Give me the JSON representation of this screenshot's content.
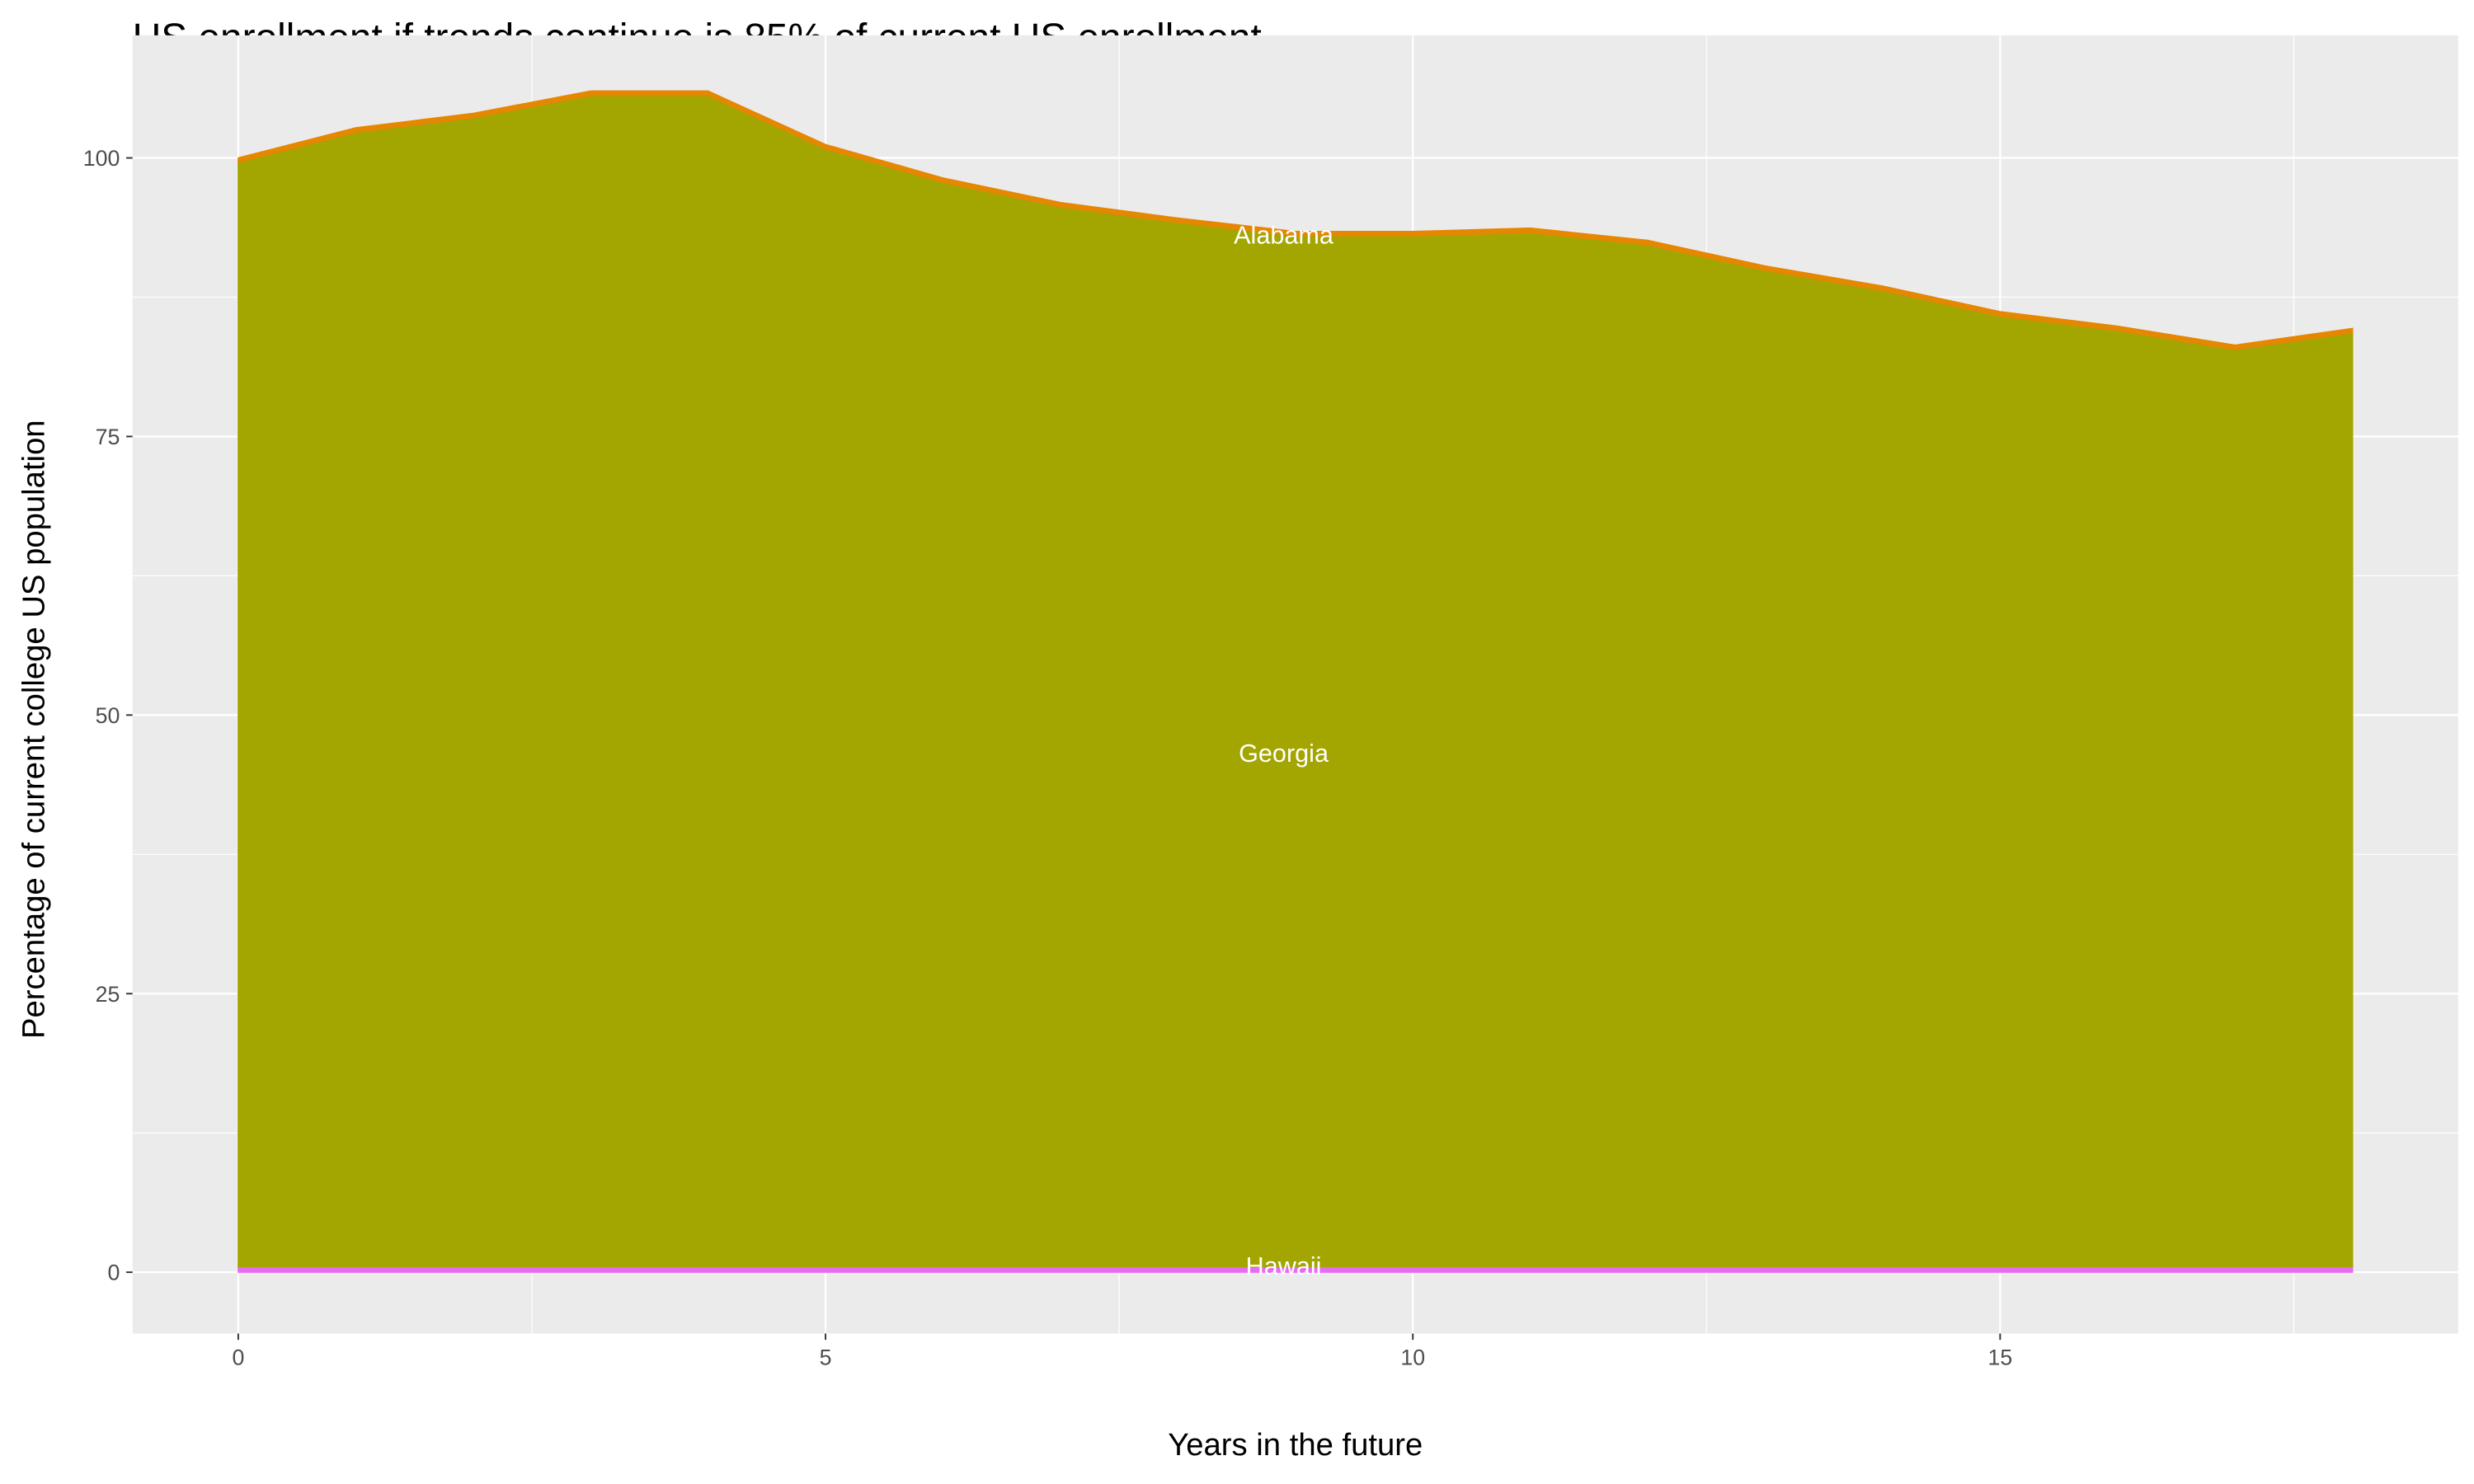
{
  "chart_data": {
    "type": "area",
    "stacked": true,
    "title": "US enrollment if trends continue is 85% of current US enrollment",
    "xlabel": "Years in the future",
    "ylabel": "Percentage of current college US population",
    "xlim": [
      -0.9,
      18.9
    ],
    "ylim": [
      -5.5,
      111
    ],
    "x_ticks": [
      0,
      5,
      10,
      15
    ],
    "y_ticks": [
      0,
      25,
      50,
      75,
      100
    ],
    "x_tick_labels": [
      "0",
      "5",
      "10",
      "15"
    ],
    "y_tick_labels": [
      "0",
      "25",
      "50",
      "75",
      "100"
    ],
    "grid": true,
    "legend": "none",
    "x": [
      0,
      1,
      2,
      3,
      4,
      5,
      6,
      7,
      8,
      9,
      10,
      11,
      12,
      13,
      14,
      15,
      16,
      17,
      18
    ],
    "series": [
      {
        "name": "Hawaii",
        "color": "#E76BF3",
        "values": [
          0.5,
          0.5,
          0.5,
          0.5,
          0.5,
          0.5,
          0.5,
          0.5,
          0.5,
          0.5,
          0.5,
          0.5,
          0.5,
          0.5,
          0.5,
          0.5,
          0.5,
          0.5,
          0.5
        ]
      },
      {
        "name": "Georgia",
        "color": "#A3A500",
        "values": [
          99.1,
          101.8,
          103.1,
          105.1,
          105.1,
          100.3,
          97.3,
          95.1,
          93.7,
          92.5,
          92.5,
          92.8,
          91.7,
          89.4,
          87.6,
          85.3,
          84.0,
          82.3,
          83.8
        ]
      },
      {
        "name": "Alabama",
        "color": "#E58700",
        "values": [
          0.4,
          0.4,
          0.4,
          0.4,
          0.4,
          0.4,
          0.4,
          0.4,
          0.4,
          0.4,
          0.4,
          0.4,
          0.4,
          0.4,
          0.4,
          0.4,
          0.4,
          0.4,
          0.4
        ]
      }
    ],
    "annotations": [
      {
        "text": "Alabama",
        "x": 9,
        "y": 93
      },
      {
        "text": "Georgia",
        "x": 9,
        "y": 46.5
      },
      {
        "text": "Hawaii",
        "x": 9,
        "y": 0.5
      }
    ]
  }
}
